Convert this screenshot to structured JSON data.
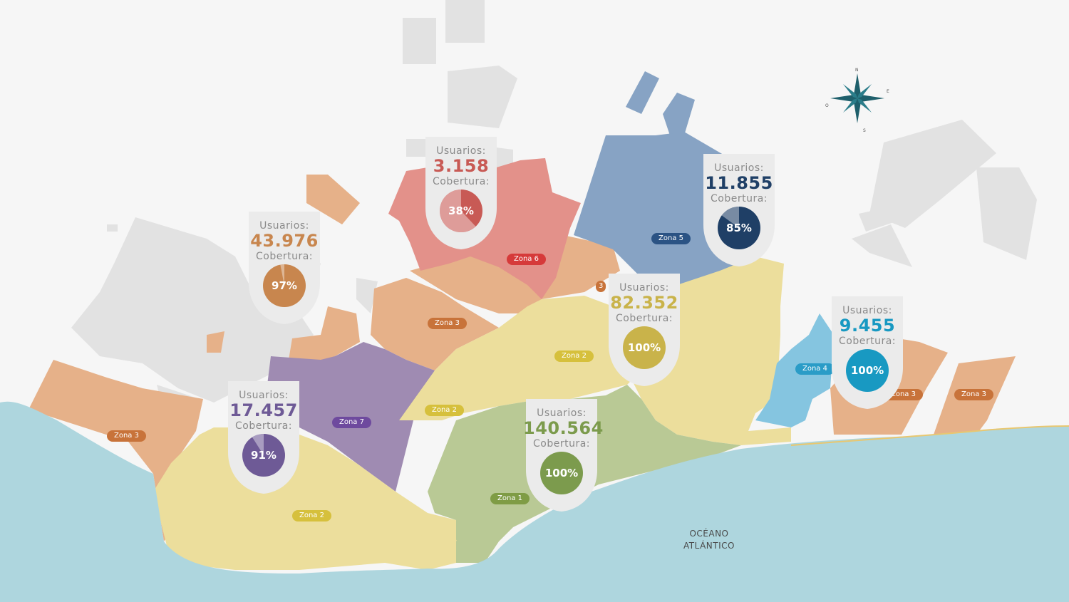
{
  "colors": {
    "background": "#f6f6f6",
    "ocean": "#aed6de",
    "blocks": "#e2e2e2",
    "zona1": "#b9c995",
    "zona2": "#ecde9c",
    "zona3": "#e6b189",
    "zona5": "#87a3c4",
    "zona6": "#e3918a",
    "zona7": "#9f8bb2",
    "zona4": "#85c5e0"
  },
  "label_usuarios": "Usuarios:",
  "label_cobertura": "Cobertura:",
  "pins": [
    {
      "id": "zona3",
      "usuarios": "43.976",
      "cobertura_text": "97%",
      "cobertura": 0.97,
      "color": "#c8864e"
    },
    {
      "id": "zona6",
      "usuarios": "3.158",
      "cobertura_text": "38%",
      "cobertura": 0.38,
      "color": "#c85a55"
    },
    {
      "id": "zona5",
      "usuarios": "11.855",
      "cobertura_text": "85%",
      "cobertura": 0.85,
      "color": "#1f3f66"
    },
    {
      "id": "zona2",
      "usuarios": "82.352",
      "cobertura_text": "100%",
      "cobertura": 1.0,
      "color": "#c9b34a"
    },
    {
      "id": "zona4",
      "usuarios": "9.455",
      "cobertura_text": "100%",
      "cobertura": 1.0,
      "color": "#1899c2"
    },
    {
      "id": "zona7",
      "usuarios": "17.457",
      "cobertura_text": "91%",
      "cobertura": 0.91,
      "color": "#6e5a96"
    },
    {
      "id": "zona1",
      "usuarios": "140.564",
      "cobertura_text": "100%",
      "cobertura": 1.0,
      "color": "#7c9b4d"
    }
  ],
  "zone_labels": {
    "zona3_a": "Zona 3",
    "zona3_b": "Zona 3",
    "zona3_c": "Zona 3",
    "zona3_d": "Zona 3",
    "zona3_e": "3",
    "zona6": "Zona 6",
    "zona5": "Zona 5",
    "zona2_a": "Zona 2",
    "zona2_b": "Zona 2",
    "zona2_c": "Zona 2",
    "zona7": "Zona 7",
    "zona1": "Zona 1",
    "zona4": "Zona 4"
  },
  "ocean": {
    "line1": "OCÉANO",
    "line2": "ATLÁNTICO"
  },
  "compass": {
    "n": "N",
    "s": "S",
    "e": "E",
    "o": "O"
  }
}
